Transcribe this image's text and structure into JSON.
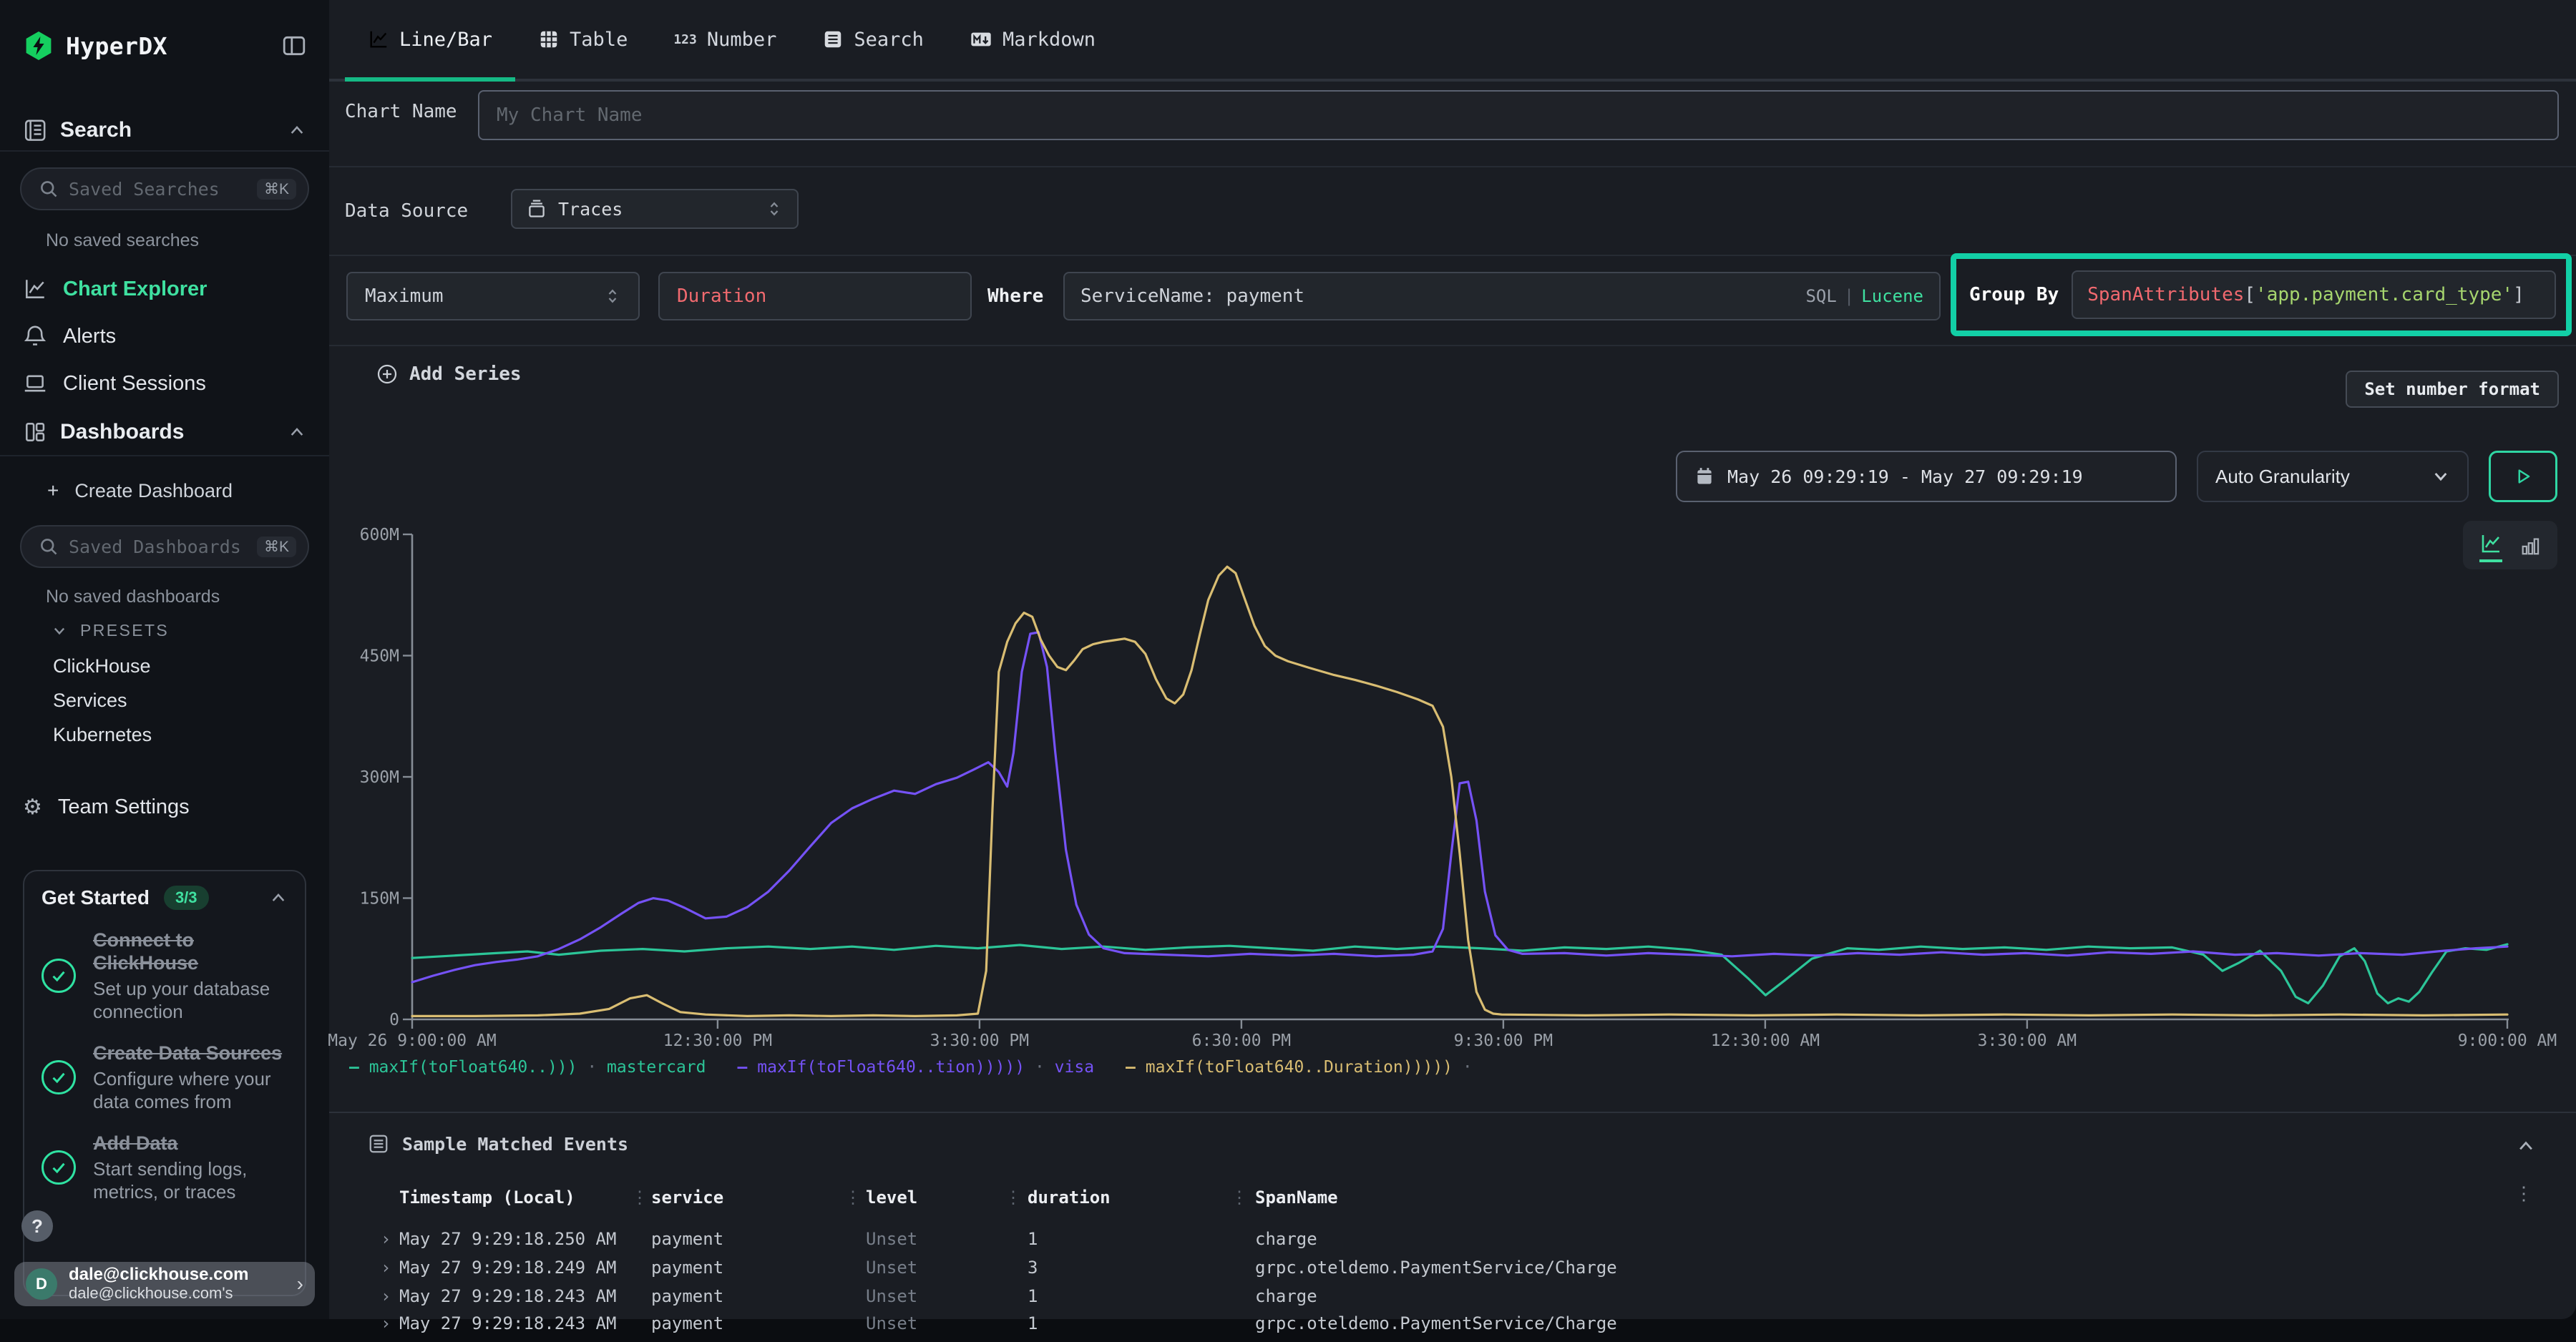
{
  "brand": {
    "name": "HyperDX"
  },
  "sidebar": {
    "search_section": {
      "label": "Search"
    },
    "saved_searches": {
      "placeholder": "Saved Searches",
      "shortcut": "⌘K",
      "empty": "No saved searches"
    },
    "nav": [
      {
        "label": "Chart Explorer",
        "icon": "chart-line",
        "active": true
      },
      {
        "label": "Alerts",
        "icon": "bell",
        "active": false
      },
      {
        "label": "Client Sessions",
        "icon": "laptop",
        "active": false
      }
    ],
    "dashboards_section": {
      "label": "Dashboards",
      "plus": "+",
      "create_label": "Create Dashboard"
    },
    "saved_dashboards": {
      "placeholder": "Saved Dashboards",
      "shortcut": "⌘K",
      "empty": "No saved dashboards"
    },
    "presets": {
      "label": "PRESETS",
      "items": [
        "ClickHouse",
        "Services",
        "Kubernetes"
      ]
    },
    "team_settings": "Team Settings",
    "get_started": {
      "title": "Get Started",
      "badge": "3/3",
      "items": [
        {
          "title": "Connect to ClickHouse",
          "desc": "Set up your database connection"
        },
        {
          "title": "Create Data Sources",
          "desc": "Configure where your data comes from"
        },
        {
          "title": "Add Data",
          "desc": "Start sending logs, metrics, or traces"
        }
      ]
    },
    "help": "?",
    "user": {
      "initial": "D",
      "email": "dale@clickhouse.com",
      "sub": "dale@clickhouse.com's"
    }
  },
  "tabs": [
    {
      "label": "Line/Bar",
      "icon": "tab-line",
      "active": true
    },
    {
      "label": "Table",
      "icon": "tab-grid",
      "active": false
    },
    {
      "label": "Number",
      "icon": "tab-123",
      "active": false
    },
    {
      "label": "Search",
      "icon": "tab-doc",
      "active": false
    },
    {
      "label": "Markdown",
      "icon": "tab-md",
      "active": false
    }
  ],
  "chart_name": {
    "label": "Chart Name",
    "placeholder": "My Chart Name"
  },
  "data_source": {
    "label": "Data Source",
    "value": "Traces"
  },
  "series_editor": {
    "aggregation": "Maximum",
    "field": "Duration",
    "where_label": "Where",
    "where_value": "ServiceName: payment",
    "sql": "SQL",
    "divider": "|",
    "lucene": "Lucene",
    "group_by_label": "Group By",
    "group_by": {
      "fn": "SpanAttributes",
      "open": "[",
      "arg": "'app.payment.card_type'",
      "close": "]"
    },
    "add_series": "Add Series",
    "set_number_format": "Set number format"
  },
  "time_controls": {
    "range": "May 26 09:29:19 - May 27 09:29:19",
    "granularity": "Auto Granularity"
  },
  "chart_data": {
    "type": "line",
    "title": "",
    "x_range": [
      "May 26 9:00:00 AM",
      "May 27 9:00:00 AM"
    ],
    "x_ticks": [
      {
        "f": 0.0,
        "label": "May 26 9:00:00 AM"
      },
      {
        "f": 0.1458,
        "label": "12:30:00 PM"
      },
      {
        "f": 0.2708,
        "label": "3:30:00 PM"
      },
      {
        "f": 0.3958,
        "label": "6:30:00 PM"
      },
      {
        "f": 0.5208,
        "label": "9:30:00 PM"
      },
      {
        "f": 0.6458,
        "label": "12:30:00 AM"
      },
      {
        "f": 0.7708,
        "label": "3:30:00 AM"
      },
      {
        "f": 1.0,
        "label": "9:00:00 AM"
      }
    ],
    "y_axis": {
      "min": 0,
      "max": 600,
      "unit": "M",
      "tick_labels": [
        "0",
        "150M",
        "300M",
        "450M",
        "600M"
      ],
      "tick_values": [
        0,
        150,
        300,
        450,
        600
      ]
    },
    "legend_separator": "·",
    "series": [
      {
        "name": "maxIf(toFloat640..)))",
        "group": "mastercard",
        "color": "#2cc598",
        "points": [
          [
            0,
            76
          ],
          [
            0.02,
            79
          ],
          [
            0.04,
            82
          ],
          [
            0.055,
            84
          ],
          [
            0.07,
            80
          ],
          [
            0.09,
            85
          ],
          [
            0.11,
            87
          ],
          [
            0.13,
            84
          ],
          [
            0.15,
            88
          ],
          [
            0.17,
            90
          ],
          [
            0.19,
            87
          ],
          [
            0.21,
            90
          ],
          [
            0.23,
            86
          ],
          [
            0.25,
            91
          ],
          [
            0.27,
            88
          ],
          [
            0.29,
            92
          ],
          [
            0.31,
            87
          ],
          [
            0.33,
            90
          ],
          [
            0.35,
            86
          ],
          [
            0.37,
            89
          ],
          [
            0.39,
            91
          ],
          [
            0.41,
            88
          ],
          [
            0.43,
            85
          ],
          [
            0.45,
            90
          ],
          [
            0.47,
            87
          ],
          [
            0.49,
            90
          ],
          [
            0.51,
            88
          ],
          [
            0.53,
            85
          ],
          [
            0.55,
            89
          ],
          [
            0.57,
            87
          ],
          [
            0.59,
            90
          ],
          [
            0.61,
            86
          ],
          [
            0.625,
            80
          ],
          [
            0.638,
            50
          ],
          [
            0.646,
            30
          ],
          [
            0.655,
            48
          ],
          [
            0.668,
            75
          ],
          [
            0.685,
            88
          ],
          [
            0.7,
            86
          ],
          [
            0.72,
            90
          ],
          [
            0.74,
            87
          ],
          [
            0.76,
            89
          ],
          [
            0.78,
            86
          ],
          [
            0.8,
            90
          ],
          [
            0.82,
            88
          ],
          [
            0.84,
            89
          ],
          [
            0.855,
            80
          ],
          [
            0.864,
            60
          ],
          [
            0.872,
            70
          ],
          [
            0.882,
            85
          ],
          [
            0.892,
            60
          ],
          [
            0.899,
            28
          ],
          [
            0.905,
            20
          ],
          [
            0.912,
            42
          ],
          [
            0.92,
            78
          ],
          [
            0.927,
            88
          ],
          [
            0.932,
            72
          ],
          [
            0.938,
            32
          ],
          [
            0.943,
            20
          ],
          [
            0.948,
            26
          ],
          [
            0.953,
            22
          ],
          [
            0.958,
            34
          ],
          [
            0.964,
            58
          ],
          [
            0.971,
            84
          ],
          [
            0.98,
            88
          ],
          [
            0.99,
            86
          ],
          [
            1,
            93
          ]
        ]
      },
      {
        "name": "maxIf(toFloat640..tion)))))",
        "group": "visa",
        "color": "#7552f6",
        "points": [
          [
            0,
            46
          ],
          [
            0.01,
            54
          ],
          [
            0.02,
            61
          ],
          [
            0.03,
            67
          ],
          [
            0.04,
            71
          ],
          [
            0.05,
            74
          ],
          [
            0.06,
            78
          ],
          [
            0.07,
            87
          ],
          [
            0.08,
            99
          ],
          [
            0.09,
            114
          ],
          [
            0.1,
            131
          ],
          [
            0.108,
            144
          ],
          [
            0.115,
            150
          ],
          [
            0.122,
            147
          ],
          [
            0.13,
            138
          ],
          [
            0.14,
            125
          ],
          [
            0.15,
            127
          ],
          [
            0.16,
            139
          ],
          [
            0.17,
            158
          ],
          [
            0.18,
            184
          ],
          [
            0.19,
            214
          ],
          [
            0.2,
            243
          ],
          [
            0.21,
            261
          ],
          [
            0.22,
            273
          ],
          [
            0.23,
            283
          ],
          [
            0.24,
            279
          ],
          [
            0.25,
            291
          ],
          [
            0.26,
            299
          ],
          [
            0.268,
            309
          ],
          [
            0.275,
            318
          ],
          [
            0.28,
            306
          ],
          [
            0.284,
            288
          ],
          [
            0.287,
            330
          ],
          [
            0.291,
            430
          ],
          [
            0.295,
            477
          ],
          [
            0.299,
            479
          ],
          [
            0.303,
            436
          ],
          [
            0.307,
            330
          ],
          [
            0.312,
            210
          ],
          [
            0.317,
            142
          ],
          [
            0.323,
            105
          ],
          [
            0.33,
            88
          ],
          [
            0.34,
            82
          ],
          [
            0.36,
            80
          ],
          [
            0.38,
            78
          ],
          [
            0.4,
            81
          ],
          [
            0.42,
            79
          ],
          [
            0.44,
            81
          ],
          [
            0.46,
            78
          ],
          [
            0.478,
            80
          ],
          [
            0.487,
            84
          ],
          [
            0.492,
            112
          ],
          [
            0.496,
            205
          ],
          [
            0.5,
            292
          ],
          [
            0.504,
            294
          ],
          [
            0.508,
            246
          ],
          [
            0.512,
            158
          ],
          [
            0.517,
            104
          ],
          [
            0.523,
            86
          ],
          [
            0.53,
            81
          ],
          [
            0.55,
            82
          ],
          [
            0.57,
            79
          ],
          [
            0.59,
            82
          ],
          [
            0.61,
            80
          ],
          [
            0.63,
            78
          ],
          [
            0.65,
            81
          ],
          [
            0.67,
            79
          ],
          [
            0.69,
            82
          ],
          [
            0.71,
            80
          ],
          [
            0.73,
            83
          ],
          [
            0.75,
            80
          ],
          [
            0.77,
            82
          ],
          [
            0.79,
            79
          ],
          [
            0.81,
            83
          ],
          [
            0.83,
            81
          ],
          [
            0.85,
            84
          ],
          [
            0.87,
            80
          ],
          [
            0.89,
            82
          ],
          [
            0.91,
            79
          ],
          [
            0.93,
            82
          ],
          [
            0.95,
            80
          ],
          [
            0.97,
            85
          ],
          [
            0.985,
            88
          ],
          [
            1,
            90
          ]
        ]
      },
      {
        "name": "maxIf(toFloat640..Duration)))))",
        "group": "",
        "color": "#d9bd72",
        "points": [
          [
            0,
            4
          ],
          [
            0.03,
            4
          ],
          [
            0.06,
            5
          ],
          [
            0.08,
            7
          ],
          [
            0.094,
            13
          ],
          [
            0.104,
            26
          ],
          [
            0.112,
            30
          ],
          [
            0.12,
            19
          ],
          [
            0.128,
            9
          ],
          [
            0.14,
            6
          ],
          [
            0.16,
            4
          ],
          [
            0.18,
            5
          ],
          [
            0.2,
            4
          ],
          [
            0.22,
            5
          ],
          [
            0.24,
            4
          ],
          [
            0.26,
            5
          ],
          [
            0.27,
            7
          ],
          [
            0.274,
            60
          ],
          [
            0.277,
            260
          ],
          [
            0.28,
            430
          ],
          [
            0.284,
            467
          ],
          [
            0.288,
            490
          ],
          [
            0.292,
            503
          ],
          [
            0.296,
            498
          ],
          [
            0.3,
            470
          ],
          [
            0.304,
            450
          ],
          [
            0.308,
            436
          ],
          [
            0.312,
            432
          ],
          [
            0.316,
            444
          ],
          [
            0.32,
            458
          ],
          [
            0.325,
            464
          ],
          [
            0.33,
            467
          ],
          [
            0.335,
            469
          ],
          [
            0.34,
            471
          ],
          [
            0.345,
            467
          ],
          [
            0.35,
            452
          ],
          [
            0.355,
            421
          ],
          [
            0.36,
            397
          ],
          [
            0.364,
            391
          ],
          [
            0.368,
            402
          ],
          [
            0.372,
            432
          ],
          [
            0.376,
            477
          ],
          [
            0.38,
            519
          ],
          [
            0.385,
            549
          ],
          [
            0.389,
            560
          ],
          [
            0.393,
            552
          ],
          [
            0.397,
            523
          ],
          [
            0.402,
            487
          ],
          [
            0.407,
            462
          ],
          [
            0.412,
            450
          ],
          [
            0.418,
            443
          ],
          [
            0.428,
            435
          ],
          [
            0.44,
            426
          ],
          [
            0.45,
            420
          ],
          [
            0.46,
            413
          ],
          [
            0.47,
            405
          ],
          [
            0.48,
            396
          ],
          [
            0.487,
            388
          ],
          [
            0.492,
            362
          ],
          [
            0.496,
            300
          ],
          [
            0.5,
            205
          ],
          [
            0.504,
            98
          ],
          [
            0.508,
            34
          ],
          [
            0.512,
            12
          ],
          [
            0.516,
            7
          ],
          [
            0.52,
            6
          ],
          [
            0.56,
            5
          ],
          [
            0.6,
            6
          ],
          [
            0.64,
            5
          ],
          [
            0.68,
            6
          ],
          [
            0.72,
            5
          ],
          [
            0.76,
            6
          ],
          [
            0.8,
            5
          ],
          [
            0.84,
            6
          ],
          [
            0.88,
            5
          ],
          [
            0.92,
            6
          ],
          [
            0.96,
            5
          ],
          [
            1,
            6
          ]
        ]
      }
    ]
  },
  "sample_events": {
    "title": "Sample Matched Events",
    "columns": [
      "Timestamp (Local)",
      "service",
      "level",
      "duration",
      "SpanName"
    ],
    "rows": [
      {
        "ts": "May 27 9:29:18.250 AM",
        "service": "payment",
        "level": "Unset",
        "duration": "1",
        "span": "charge"
      },
      {
        "ts": "May 27 9:29:18.249 AM",
        "service": "payment",
        "level": "Unset",
        "duration": "3",
        "span": "grpc.oteldemo.PaymentService/Charge"
      },
      {
        "ts": "May 27 9:29:18.243 AM",
        "service": "payment",
        "level": "Unset",
        "duration": "1",
        "span": "charge"
      },
      {
        "ts": "May 27 9:29:18.243 AM",
        "service": "payment",
        "level": "Unset",
        "duration": "1",
        "span": "grpc.oteldemo.PaymentService/Charge"
      }
    ]
  },
  "colors": {
    "accent_green": "#3fe0a0",
    "annotation_teal": "#12cfa6",
    "tab_underline": "#15b985",
    "field_red": "#f16a6f",
    "string_green": "#a6d56e",
    "series_mastercard": "#2cc598",
    "series_visa": "#7552f6",
    "series_blank": "#d9bd72"
  }
}
